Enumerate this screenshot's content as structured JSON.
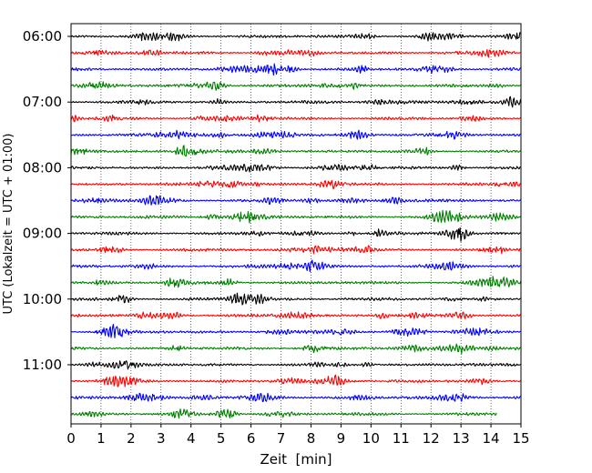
{
  "chart_data": {
    "type": "line",
    "title": "",
    "xlabel": "Zeit  [min]",
    "ylabel": "UTC (Lokalzeit = UTC + 01:00)",
    "xlim": [
      0,
      15
    ],
    "x_ticks": [
      0,
      1,
      2,
      3,
      4,
      5,
      6,
      7,
      8,
      9,
      10,
      11,
      12,
      13,
      14,
      15
    ],
    "y_tick_labels": [
      "06:00",
      "07:00",
      "08:00",
      "09:00",
      "10:00",
      "11:00"
    ],
    "row_start_times": [
      "06:00",
      "06:15",
      "06:30",
      "06:45",
      "07:00",
      "07:15",
      "07:30",
      "07:45",
      "08:00",
      "08:15",
      "08:30",
      "08:45",
      "09:00",
      "09:15",
      "09:30",
      "09:45",
      "10:00",
      "10:15",
      "10:30",
      "10:45",
      "11:00",
      "11:15",
      "11:30",
      "11:45"
    ],
    "row_colors": [
      "#000000",
      "#ff0000",
      "#0000ff",
      "#007f00"
    ],
    "minutes_per_row": 15,
    "last_row_end_minute": 14.2,
    "grid": "vertical dotted lines at every minute",
    "legend": "none"
  }
}
